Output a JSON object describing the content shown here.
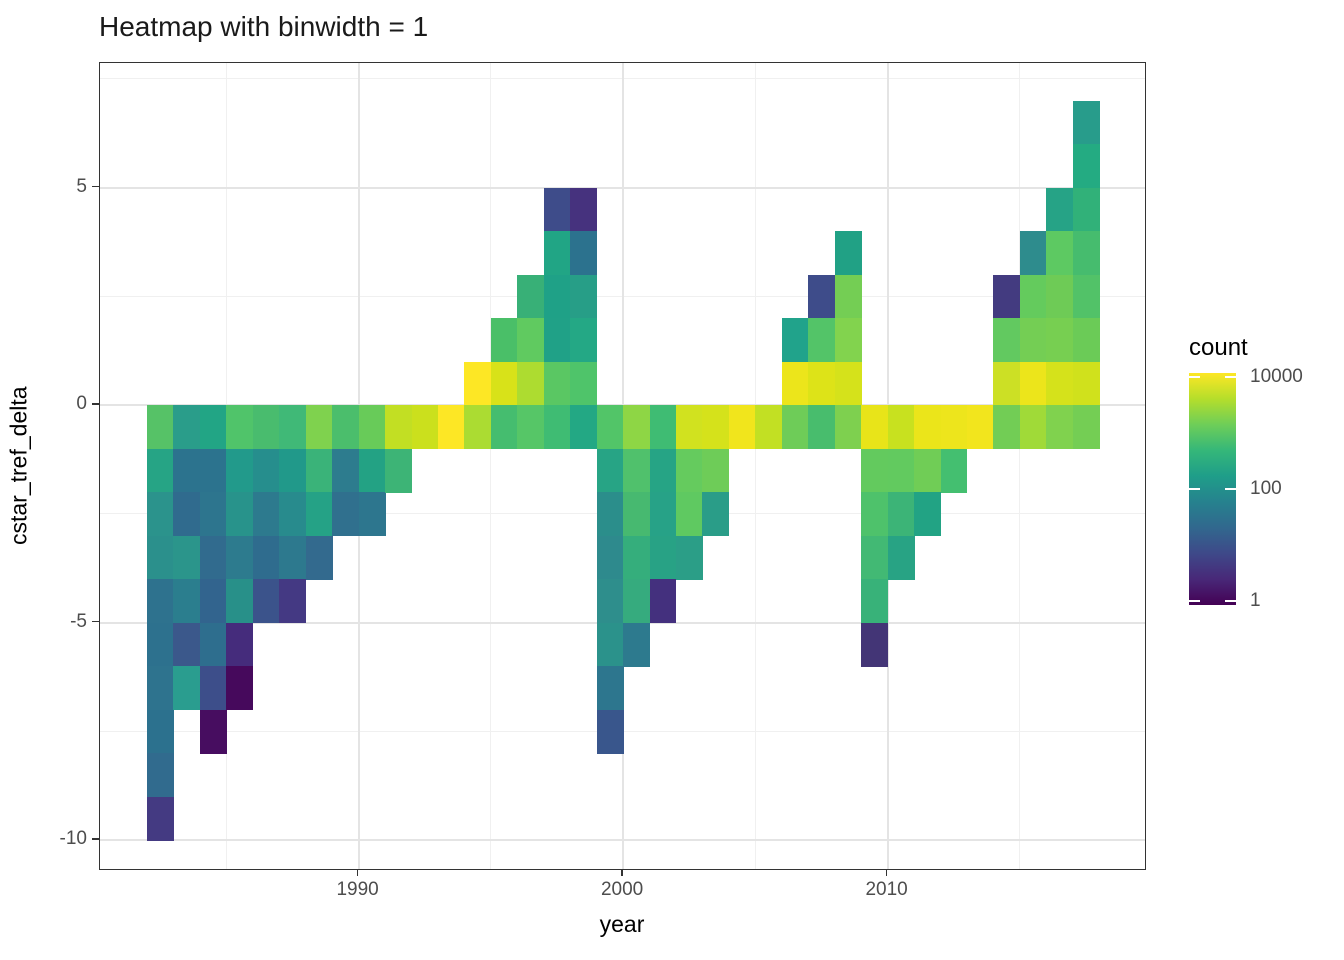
{
  "title": "Heatmap with binwidth = 1",
  "chart_data": {
    "type": "heatmap",
    "title": "Heatmap with binwidth = 1",
    "xlabel": "year",
    "ylabel": "cstar_tref_delta",
    "binwidth": 1,
    "x_ticks": [
      1990,
      2000,
      2010
    ],
    "x_tick_labels": [
      "1990",
      "2000",
      "2010"
    ],
    "y_ticks": [
      5,
      0,
      -5,
      -10
    ],
    "y_tick_labels": [
      "5",
      "0",
      "-5",
      "-10"
    ],
    "x_gridlines_major": [
      1990,
      2000,
      2010
    ],
    "x_gridlines_minor": [
      1985,
      1995,
      2005,
      2015
    ],
    "y_gridlines_major": [
      5,
      0,
      -5,
      -10
    ],
    "y_gridlines_minor": [
      7.5,
      2.5,
      -2.5,
      -7.5
    ],
    "xlim": [
      1980.2,
      2019.6
    ],
    "ylim": [
      -10.7,
      7.9
    ],
    "grid": true,
    "colormap": "viridis",
    "legend": {
      "title": "count",
      "position": "right",
      "scale": "log10",
      "ticks": [
        {
          "value": 10000,
          "label": "10000"
        },
        {
          "value": 100,
          "label": "100"
        },
        {
          "value": 1,
          "label": "1"
        }
      ]
    },
    "cells_columns": [
      "year",
      "y_bin_bottom",
      "count",
      "color"
    ],
    "cells": [
      [
        1982,
        -1,
        1300,
        "#56c267"
      ],
      [
        1982,
        -2,
        330,
        "#26a485"
      ],
      [
        1982,
        -3,
        115,
        "#2b938c"
      ],
      [
        1982,
        -4,
        105,
        "#2b908c"
      ],
      [
        1982,
        -5,
        36,
        "#2e728e"
      ],
      [
        1982,
        -6,
        35,
        "#2d718e"
      ],
      [
        1982,
        -7,
        38,
        "#2e738e"
      ],
      [
        1982,
        -8,
        35,
        "#2c718e"
      ],
      [
        1982,
        -9,
        28,
        "#316b8e"
      ],
      [
        1982,
        -10,
        5,
        "#443a82"
      ],
      [
        1983,
        -1,
        210,
        "#2a9d8a"
      ],
      [
        1983,
        -2,
        36,
        "#2c738e"
      ],
      [
        1983,
        -3,
        27,
        "#306b8e"
      ],
      [
        1983,
        -4,
        135,
        "#2b958b"
      ],
      [
        1983,
        -5,
        52,
        "#2b7e8e"
      ],
      [
        1983,
        -6,
        13,
        "#3b588b"
      ],
      [
        1983,
        -7,
        210,
        "#2a9d8f"
      ],
      [
        1984,
        -1,
        350,
        "#22a585"
      ],
      [
        1984,
        -2,
        36,
        "#2c738e"
      ],
      [
        1984,
        -3,
        39,
        "#2d758e"
      ],
      [
        1984,
        -4,
        27,
        "#316b8e"
      ],
      [
        1984,
        -5,
        22,
        "#32648e"
      ],
      [
        1984,
        -6,
        30,
        "#2e6e8e"
      ],
      [
        1984,
        -7,
        9,
        "#3d4e8a"
      ],
      [
        1984,
        -8,
        2,
        "#470d60"
      ],
      [
        1985,
        -1,
        1100,
        "#50c46a"
      ],
      [
        1985,
        -2,
        190,
        "#229a8b"
      ],
      [
        1985,
        -3,
        120,
        "#28938b"
      ],
      [
        1985,
        -4,
        47,
        "#2d7b8e"
      ],
      [
        1985,
        -5,
        100,
        "#289089"
      ],
      [
        1985,
        -6,
        3,
        "#452c7c"
      ],
      [
        1985,
        -7,
        1,
        "#46095c"
      ],
      [
        1986,
        -1,
        960,
        "#49bc6e"
      ],
      [
        1986,
        -2,
        95,
        "#268e8d"
      ],
      [
        1986,
        -3,
        46,
        "#2d7a8e"
      ],
      [
        1986,
        -4,
        29,
        "#2f6c8e"
      ],
      [
        1986,
        -5,
        12,
        "#3b538b"
      ],
      [
        1987,
        -1,
        760,
        "#40b977"
      ],
      [
        1987,
        -2,
        170,
        "#21998a"
      ],
      [
        1987,
        -3,
        88,
        "#288b8d"
      ],
      [
        1987,
        -4,
        44,
        "#2d798e"
      ],
      [
        1987,
        -5,
        5,
        "#443983"
      ],
      [
        1988,
        -1,
        2500,
        "#7fd24e"
      ],
      [
        1988,
        -2,
        570,
        "#3ab379"
      ],
      [
        1988,
        -3,
        300,
        "#25a286"
      ],
      [
        1988,
        -4,
        26,
        "#336a8e"
      ],
      [
        1989,
        -1,
        1000,
        "#4bbe6c"
      ],
      [
        1989,
        -2,
        48,
        "#2d7c8e"
      ],
      [
        1989,
        -3,
        33,
        "#30708e"
      ],
      [
        1990,
        -1,
        1800,
        "#68cb59"
      ],
      [
        1990,
        -2,
        300,
        "#23a284"
      ],
      [
        1990,
        -3,
        40,
        "#2d768e"
      ],
      [
        1991,
        -1,
        5500,
        "#c2df23"
      ],
      [
        1991,
        -2,
        630,
        "#3db476"
      ],
      [
        1992,
        -1,
        6300,
        "#cbe01d"
      ],
      [
        1993,
        -1,
        10000,
        "#fde725"
      ],
      [
        1994,
        0,
        10000,
        "#fde725"
      ],
      [
        1994,
        -1,
        4400,
        "#abdc32"
      ],
      [
        1995,
        1,
        1000,
        "#4abf68"
      ],
      [
        1995,
        0,
        7200,
        "#d8e219"
      ],
      [
        1995,
        -1,
        880,
        "#45bd6f"
      ],
      [
        1996,
        2,
        550,
        "#38b077"
      ],
      [
        1996,
        1,
        1600,
        "#60ca60"
      ],
      [
        1996,
        0,
        4600,
        "#addc30"
      ],
      [
        1996,
        -1,
        1300,
        "#56c667"
      ],
      [
        1997,
        4,
        9,
        "#3e4c8a"
      ],
      [
        1997,
        3,
        350,
        "#21a585"
      ],
      [
        1997,
        2,
        260,
        "#1fa187"
      ],
      [
        1997,
        1,
        260,
        "#20a187"
      ],
      [
        1997,
        0,
        1450,
        "#5ac763"
      ],
      [
        1997,
        -1,
        790,
        "#3fbc73"
      ],
      [
        1998,
        4,
        4,
        "#46327e"
      ],
      [
        1998,
        3,
        35,
        "#2c728e"
      ],
      [
        1998,
        2,
        220,
        "#279e87"
      ],
      [
        1998,
        1,
        380,
        "#24a885"
      ],
      [
        1998,
        0,
        1100,
        "#4fc46a"
      ],
      [
        1998,
        -1,
        380,
        "#23a884"
      ],
      [
        1999,
        -1,
        1200,
        "#52c568"
      ],
      [
        1999,
        -2,
        330,
        "#27a485"
      ],
      [
        1999,
        -3,
        91,
        "#2b8e8b"
      ],
      [
        1999,
        -4,
        79,
        "#2e8a8d"
      ],
      [
        1999,
        -5,
        91,
        "#2e8e8c"
      ],
      [
        1999,
        -6,
        110,
        "#2b928b"
      ],
      [
        1999,
        -7,
        40,
        "#2d768e"
      ],
      [
        1999,
        -8,
        13,
        "#39568c"
      ],
      [
        2000,
        -1,
        3200,
        "#8ed645"
      ],
      [
        2000,
        -2,
        1100,
        "#50c16c"
      ],
      [
        2000,
        -3,
        760,
        "#47b970"
      ],
      [
        2000,
        -4,
        460,
        "#35ae7c"
      ],
      [
        2000,
        -5,
        420,
        "#36ab7e"
      ],
      [
        2000,
        -6,
        46,
        "#2d7a8e"
      ],
      [
        2001,
        -1,
        790,
        "#3fbc73"
      ],
      [
        2001,
        -2,
        330,
        "#26a485"
      ],
      [
        2001,
        -3,
        290,
        "#27a287"
      ],
      [
        2001,
        -4,
        290,
        "#28a285"
      ],
      [
        2001,
        -5,
        4,
        "#44307e"
      ],
      [
        2002,
        -1,
        6600,
        "#d1e21f"
      ],
      [
        2002,
        -2,
        1700,
        "#65cb5e"
      ],
      [
        2002,
        -3,
        1500,
        "#5fc961"
      ],
      [
        2002,
        -4,
        220,
        "#2b9e87"
      ],
      [
        2003,
        -1,
        6900,
        "#d5e21b"
      ],
      [
        2003,
        -2,
        2000,
        "#6ecc58"
      ],
      [
        2003,
        -3,
        210,
        "#2a9d88"
      ],
      [
        2004,
        -1,
        8700,
        "#f1e51c"
      ],
      [
        2005,
        -1,
        5500,
        "#c2e023"
      ],
      [
        2006,
        1,
        300,
        "#21a38b"
      ],
      [
        2006,
        0,
        8300,
        "#ece51b"
      ],
      [
        2006,
        -1,
        2000,
        "#6ecc58"
      ],
      [
        2007,
        2,
        9,
        "#3e4c8a"
      ],
      [
        2007,
        1,
        1250,
        "#53c468"
      ],
      [
        2007,
        0,
        7600,
        "#dde318"
      ],
      [
        2007,
        -1,
        910,
        "#48bd6d"
      ],
      [
        2008,
        3,
        280,
        "#21a185"
      ],
      [
        2008,
        2,
        2200,
        "#74ce54"
      ],
      [
        2008,
        1,
        2600,
        "#82d34e"
      ],
      [
        2008,
        0,
        6900,
        "#d5e21b"
      ],
      [
        2008,
        -1,
        2500,
        "#7ed04f"
      ],
      [
        2009,
        -1,
        7900,
        "#e8e419"
      ],
      [
        2009,
        -2,
        1650,
        "#63ca5e"
      ],
      [
        2009,
        -3,
        1050,
        "#4ec26b"
      ],
      [
        2009,
        -4,
        760,
        "#42b974"
      ],
      [
        2009,
        -5,
        580,
        "#38b279"
      ],
      [
        2009,
        -6,
        4,
        "#433576"
      ],
      [
        2010,
        -1,
        6000,
        "#c8e11f"
      ],
      [
        2010,
        -2,
        1600,
        "#62ca5f"
      ],
      [
        2010,
        -3,
        630,
        "#3cb477"
      ],
      [
        2010,
        -4,
        320,
        "#28a384"
      ],
      [
        2011,
        -1,
        8300,
        "#ebe51a"
      ],
      [
        2011,
        -2,
        2100,
        "#70cd56"
      ],
      [
        2011,
        -3,
        320,
        "#22a384"
      ],
      [
        2012,
        -1,
        8500,
        "#ede51c"
      ],
      [
        2012,
        -2,
        870,
        "#44bf70"
      ],
      [
        2013,
        -1,
        9100,
        "#f2e51d"
      ],
      [
        2014,
        2,
        5,
        "#433b80"
      ],
      [
        2014,
        1,
        1600,
        "#62c960"
      ],
      [
        2014,
        0,
        6300,
        "#cce025"
      ],
      [
        2014,
        -1,
        2100,
        "#72cd55"
      ],
      [
        2015,
        3,
        83,
        "#2e8c8d"
      ],
      [
        2015,
        2,
        1650,
        "#64cb5d"
      ],
      [
        2015,
        1,
        2200,
        "#74ce54"
      ],
      [
        2015,
        0,
        8300,
        "#ece51b"
      ],
      [
        2015,
        -1,
        4000,
        "#a0da38"
      ],
      [
        2016,
        4,
        320,
        "#26a386"
      ],
      [
        2016,
        3,
        1450,
        "#5dc962"
      ],
      [
        2016,
        2,
        2000,
        "#6ecb56"
      ],
      [
        2016,
        1,
        2300,
        "#77cf51"
      ],
      [
        2016,
        0,
        6900,
        "#d5e21b"
      ],
      [
        2016,
        -1,
        2500,
        "#80d24e"
      ],
      [
        2017,
        6,
        200,
        "#289c8b"
      ],
      [
        2017,
        5,
        400,
        "#24ab82"
      ],
      [
        2017,
        4,
        500,
        "#31b179"
      ],
      [
        2017,
        3,
        830,
        "#46bc6e"
      ],
      [
        2017,
        2,
        1150,
        "#52c268"
      ],
      [
        2017,
        1,
        1900,
        "#6bcb57"
      ],
      [
        2017,
        0,
        6600,
        "#d0e11c"
      ],
      [
        2017,
        -1,
        2200,
        "#74ce54"
      ]
    ]
  },
  "style": {
    "panel_border": "#333333",
    "grid_major": "#e4e4e4",
    "grid_minor": "#f0f0f0",
    "tick_label_color": "#4d4d4d",
    "viridis_low": "#440154",
    "viridis_high": "#fde725"
  }
}
